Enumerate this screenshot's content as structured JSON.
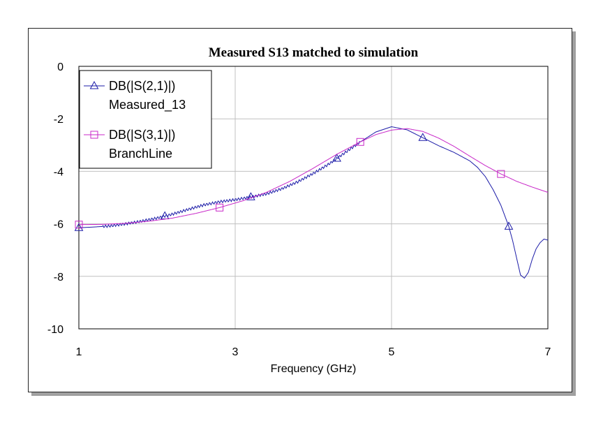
{
  "chart_data": {
    "type": "line",
    "title": "Measured S13 matched to simulation",
    "xlabel": "Frequency (GHz)",
    "ylabel": "",
    "xlim": [
      1,
      7
    ],
    "ylim": [
      -10,
      0
    ],
    "x_ticks": [
      "1",
      "3",
      "5",
      "7"
    ],
    "y_ticks": [
      "0",
      "-2",
      "-4",
      "-6",
      "-8",
      "-10"
    ],
    "grid": true,
    "legend_position": "top-left",
    "series": [
      {
        "name": "DB(|S(2,1)|)",
        "name_line2": "Measured_13",
        "color": "#1c1ca8",
        "marker": "triangle",
        "x": [
          1.0,
          1.2,
          1.4,
          1.6,
          1.8,
          2.0,
          2.2,
          2.4,
          2.6,
          2.8,
          3.0,
          3.2,
          3.4,
          3.6,
          3.8,
          4.0,
          4.2,
          4.4,
          4.6,
          4.8,
          5.0,
          5.2,
          5.4,
          5.6,
          5.8,
          6.0,
          6.1,
          6.2,
          6.3,
          6.4,
          6.5,
          6.55,
          6.6,
          6.65,
          6.7,
          6.75,
          6.8,
          6.85,
          6.9,
          6.95,
          7.0
        ],
        "values": [
          -6.15,
          -6.12,
          -6.08,
          -6.0,
          -5.9,
          -5.78,
          -5.63,
          -5.45,
          -5.28,
          -5.16,
          -5.08,
          -4.98,
          -4.86,
          -4.66,
          -4.4,
          -4.08,
          -3.72,
          -3.3,
          -2.88,
          -2.5,
          -2.3,
          -2.42,
          -2.72,
          -3.02,
          -3.28,
          -3.6,
          -3.85,
          -4.2,
          -4.7,
          -5.3,
          -6.1,
          -6.65,
          -7.3,
          -7.95,
          -8.07,
          -7.85,
          -7.35,
          -6.95,
          -6.72,
          -6.58,
          -6.62
        ],
        "marker_x": [
          1.0,
          2.1,
          3.2,
          4.3,
          5.4,
          6.5
        ]
      },
      {
        "name": "DB(|S(3,1)|)",
        "name_line2": "BranchLine",
        "color": "#c828c8",
        "marker": "square",
        "x": [
          1.0,
          1.3,
          1.6,
          1.9,
          2.2,
          2.5,
          2.8,
          3.1,
          3.4,
          3.7,
          4.0,
          4.3,
          4.6,
          4.8,
          5.0,
          5.2,
          5.4,
          5.6,
          5.8,
          6.0,
          6.2,
          6.4,
          6.6,
          6.8,
          7.0
        ],
        "values": [
          -6.03,
          -6.02,
          -5.98,
          -5.9,
          -5.78,
          -5.6,
          -5.38,
          -5.12,
          -4.8,
          -4.38,
          -3.88,
          -3.35,
          -2.88,
          -2.6,
          -2.43,
          -2.37,
          -2.48,
          -2.73,
          -3.05,
          -3.42,
          -3.78,
          -4.1,
          -4.38,
          -4.6,
          -4.8
        ],
        "marker_x": [
          1.0,
          2.8,
          4.6,
          6.4
        ]
      }
    ]
  }
}
